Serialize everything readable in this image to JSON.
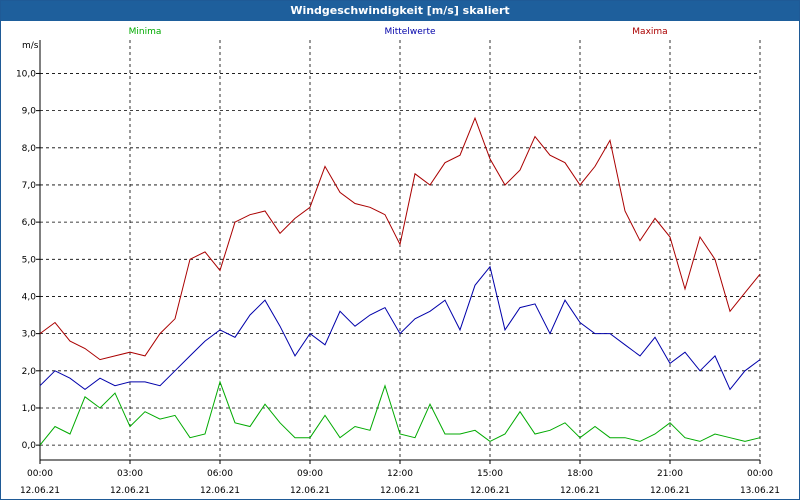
{
  "window": {
    "title": "Windgeschwindigkeit [m/s] skaliert"
  },
  "chart_data": {
    "type": "line",
    "title": "Windgeschwindigkeit [m/s] skaliert",
    "ylabel": "m/s",
    "xlabel": "",
    "ylim": [
      -0.4,
      10.9
    ],
    "yticks": [
      "0,0",
      "1,0",
      "2,0",
      "3,0",
      "4,0",
      "5,0",
      "6,0",
      "7,0",
      "8,0",
      "9,0",
      "10,0"
    ],
    "xlim": [
      0,
      24
    ],
    "xticks": [
      {
        "time": "00:00",
        "date": "12.06.21"
      },
      {
        "time": "03:00",
        "date": "12.06.21"
      },
      {
        "time": "06:00",
        "date": "12.06.21"
      },
      {
        "time": "09:00",
        "date": "12.06.21"
      },
      {
        "time": "12:00",
        "date": "12.06.21"
      },
      {
        "time": "15:00",
        "date": "12.06.21"
      },
      {
        "time": "18:00",
        "date": "12.06.21"
      },
      {
        "time": "21:00",
        "date": "12.06.21"
      },
      {
        "time": "00:00",
        "date": "13.06.21"
      }
    ],
    "grid": true,
    "legend_position": "top",
    "series": [
      {
        "name": "Minima",
        "color": "#00aa00",
        "x": [
          0,
          0.5,
          1,
          1.5,
          2,
          2.5,
          3,
          3.5,
          4,
          4.5,
          5,
          5.5,
          6,
          6.5,
          7,
          7.5,
          8,
          8.5,
          9,
          9.5,
          10,
          10.5,
          11,
          11.5,
          12,
          12.5,
          13,
          13.5,
          14,
          14.5,
          15,
          15.5,
          16,
          16.5,
          17,
          17.5,
          18,
          18.5,
          19,
          19.5,
          20,
          20.5,
          21,
          21.5,
          22,
          22.5,
          23,
          23.5,
          24
        ],
        "values": [
          0.0,
          0.5,
          0.3,
          1.3,
          1.0,
          1.4,
          0.5,
          0.9,
          0.7,
          0.8,
          0.2,
          0.3,
          1.7,
          0.6,
          0.5,
          1.1,
          0.6,
          0.2,
          0.2,
          0.8,
          0.2,
          0.5,
          0.4,
          1.6,
          0.3,
          0.2,
          1.1,
          0.3,
          0.3,
          0.4,
          0.1,
          0.3,
          0.9,
          0.3,
          0.4,
          0.6,
          0.2,
          0.5,
          0.2,
          0.2,
          0.1,
          0.3,
          0.6,
          0.2,
          0.1,
          0.3,
          0.2,
          0.1,
          0.2
        ]
      },
      {
        "name": "Mittelwerte",
        "color": "#0000aa",
        "x": [
          0,
          0.5,
          1,
          1.5,
          2,
          2.5,
          3,
          3.5,
          4,
          4.5,
          5,
          5.5,
          6,
          6.5,
          7,
          7.5,
          8,
          8.5,
          9,
          9.5,
          10,
          10.5,
          11,
          11.5,
          12,
          12.5,
          13,
          13.5,
          14,
          14.5,
          15,
          15.5,
          16,
          16.5,
          17,
          17.5,
          18,
          18.5,
          19,
          19.5,
          20,
          20.5,
          21,
          21.5,
          22,
          22.5,
          23,
          23.5,
          24
        ],
        "values": [
          1.6,
          2.0,
          1.8,
          1.5,
          1.8,
          1.6,
          1.7,
          1.7,
          1.6,
          2.0,
          2.4,
          2.8,
          3.1,
          2.9,
          3.5,
          3.9,
          3.2,
          2.4,
          3.0,
          2.7,
          3.6,
          3.2,
          3.5,
          3.7,
          3.0,
          3.4,
          3.6,
          3.9,
          3.1,
          4.3,
          4.8,
          3.1,
          3.7,
          3.8,
          3.0,
          3.9,
          3.3,
          3.0,
          3.0,
          2.7,
          2.4,
          2.9,
          2.2,
          2.5,
          2.0,
          2.4,
          1.5,
          2.0,
          2.3
        ]
      },
      {
        "name": "Maxima",
        "color": "#aa0000",
        "x": [
          0,
          0.5,
          1,
          1.5,
          2,
          2.5,
          3,
          3.5,
          4,
          4.5,
          5,
          5.5,
          6,
          6.5,
          7,
          7.5,
          8,
          8.5,
          9,
          9.5,
          10,
          10.5,
          11,
          11.5,
          12,
          12.5,
          13,
          13.5,
          14,
          14.5,
          15,
          15.5,
          16,
          16.5,
          17,
          17.5,
          18,
          18.5,
          19,
          19.5,
          20,
          20.5,
          21,
          21.5,
          22,
          22.5,
          23,
          23.5,
          24
        ],
        "values": [
          3.0,
          3.3,
          2.8,
          2.6,
          2.3,
          2.4,
          2.5,
          2.4,
          3.0,
          3.4,
          5.0,
          5.2,
          4.7,
          6.0,
          6.2,
          6.3,
          5.7,
          6.1,
          6.4,
          7.5,
          6.8,
          6.5,
          6.4,
          6.2,
          5.4,
          7.3,
          7.0,
          7.6,
          7.8,
          8.8,
          7.7,
          7.0,
          7.4,
          8.3,
          7.8,
          7.6,
          7.0,
          7.5,
          8.2,
          6.3,
          5.5,
          6.1,
          5.6,
          4.2,
          5.6,
          5.0,
          3.6,
          4.1,
          4.6
        ]
      }
    ]
  }
}
